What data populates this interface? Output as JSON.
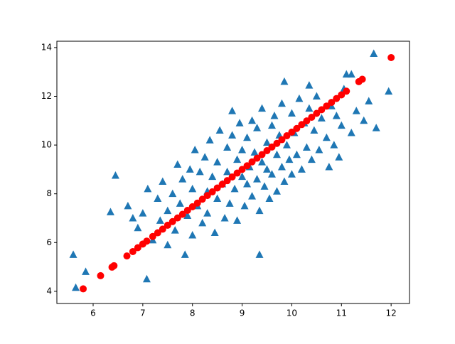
{
  "chart_data": {
    "type": "scatter",
    "xlim": [
      5.27,
      12.37
    ],
    "ylim": [
      3.5,
      14.26
    ],
    "xticks": [
      6,
      7,
      8,
      9,
      10,
      11,
      12
    ],
    "yticks": [
      4,
      6,
      8,
      10,
      12,
      14
    ],
    "series": [
      {
        "color": "#1f77b4",
        "marker": "triangle",
        "x": [
          5.6,
          5.65,
          5.85,
          6.45,
          6.35,
          7.08,
          9.35,
          8.8,
          9.85,
          11.65,
          11.95,
          11.1,
          11.2,
          10.35,
          6.7,
          6.8,
          6.9,
          7.0,
          7.1,
          7.2,
          7.3,
          7.35,
          7.4,
          7.5,
          7.5,
          7.6,
          7.65,
          7.7,
          7.75,
          7.8,
          7.85,
          7.9,
          7.95,
          8.0,
          8.0,
          8.05,
          8.1,
          8.15,
          8.2,
          8.25,
          8.3,
          8.3,
          8.35,
          8.4,
          8.45,
          8.5,
          8.5,
          8.55,
          8.6,
          8.65,
          8.7,
          8.7,
          8.75,
          8.8,
          8.85,
          8.9,
          8.9,
          8.95,
          9.0,
          9.0,
          9.05,
          9.1,
          9.1,
          9.15,
          9.2,
          9.2,
          9.25,
          9.3,
          9.3,
          9.35,
          9.4,
          9.4,
          9.45,
          9.5,
          9.5,
          9.55,
          9.6,
          9.6,
          9.65,
          9.7,
          9.7,
          9.75,
          9.8,
          9.8,
          9.85,
          9.9,
          9.95,
          10.0,
          10.0,
          10.05,
          10.1,
          10.15,
          10.2,
          10.25,
          10.3,
          10.35,
          10.4,
          10.45,
          10.5,
          10.55,
          10.6,
          10.7,
          10.75,
          10.8,
          10.85,
          10.9,
          10.95,
          11.0,
          11.05,
          11.2,
          11.3,
          11.45,
          11.55,
          11.7
        ],
        "values": [
          5.5,
          4.15,
          4.8,
          8.75,
          7.25,
          4.5,
          5.5,
          11.4,
          12.6,
          13.75,
          12.2,
          12.9,
          12.9,
          12.45,
          7.5,
          7.0,
          6.6,
          7.2,
          8.2,
          6.1,
          7.8,
          6.9,
          8.5,
          7.3,
          5.9,
          8.0,
          6.5,
          9.2,
          7.6,
          8.6,
          5.5,
          7.1,
          9.0,
          8.2,
          6.3,
          9.8,
          7.5,
          8.9,
          6.8,
          9.5,
          8.1,
          7.2,
          10.2,
          8.7,
          6.4,
          9.3,
          7.8,
          10.6,
          8.4,
          7.0,
          9.9,
          8.9,
          7.6,
          10.4,
          8.2,
          9.4,
          6.9,
          10.9,
          8.7,
          9.8,
          7.5,
          10.3,
          8.4,
          9.1,
          11.0,
          7.9,
          9.7,
          8.6,
          10.7,
          7.3,
          9.3,
          11.5,
          8.3,
          10.1,
          9.0,
          7.8,
          10.8,
          8.8,
          11.2,
          9.6,
          8.1,
          10.4,
          9.1,
          11.7,
          8.5,
          10.0,
          9.4,
          11.3,
          8.8,
          10.5,
          9.6,
          11.9,
          9.0,
          10.9,
          9.9,
          11.5,
          9.4,
          10.6,
          12.0,
          9.8,
          11.1,
          10.3,
          9.1,
          11.6,
          10.0,
          11.2,
          9.5,
          10.8,
          12.3,
          10.5,
          11.4,
          11.0,
          11.8,
          10.7
        ]
      },
      {
        "color": "#ff0000",
        "marker": "circle",
        "x": [
          5.8,
          6.15,
          6.38,
          6.42,
          6.68,
          6.8,
          6.9,
          7.0,
          7.08,
          7.2,
          7.3,
          7.4,
          7.5,
          7.6,
          7.7,
          7.8,
          7.9,
          8.0,
          8.1,
          8.2,
          8.3,
          8.4,
          8.5,
          8.6,
          8.7,
          8.8,
          8.9,
          9.0,
          9.1,
          9.2,
          9.3,
          9.4,
          9.5,
          9.6,
          9.7,
          9.8,
          9.9,
          10.0,
          10.1,
          10.2,
          10.3,
          10.4,
          10.5,
          10.6,
          10.7,
          10.8,
          10.9,
          11.0,
          11.1,
          11.35,
          11.42,
          12.0
        ],
        "values": [
          4.1,
          4.64,
          4.99,
          5.05,
          5.45,
          5.63,
          5.79,
          5.94,
          6.06,
          6.25,
          6.4,
          6.55,
          6.71,
          6.86,
          7.01,
          7.16,
          7.32,
          7.47,
          7.62,
          7.78,
          7.93,
          8.08,
          8.24,
          8.39,
          8.54,
          8.69,
          8.85,
          9.0,
          9.15,
          9.31,
          9.46,
          9.61,
          9.77,
          9.92,
          10.07,
          10.22,
          10.38,
          10.53,
          10.68,
          10.84,
          10.99,
          11.14,
          11.3,
          11.45,
          11.6,
          11.75,
          11.91,
          12.06,
          12.21,
          12.6,
          12.7,
          13.59
        ]
      }
    ]
  }
}
